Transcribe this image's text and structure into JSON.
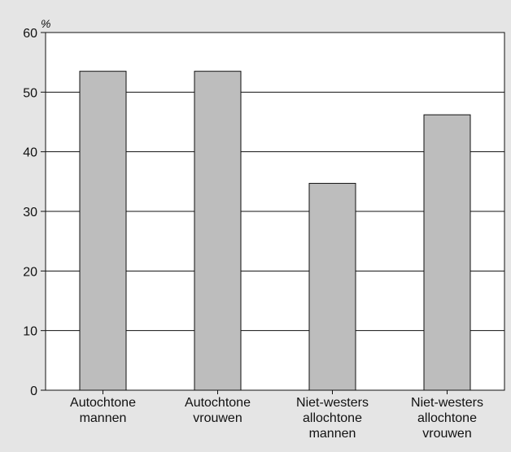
{
  "chart_data": {
    "type": "bar",
    "unit_label": "%",
    "categories": [
      [
        "Autochtone",
        "mannen"
      ],
      [
        "Autochtone",
        "vrouwen"
      ],
      [
        "Niet-westers",
        "allochtone",
        "mannen"
      ],
      [
        "Niet-westers",
        "allochtone",
        "vrouwen"
      ]
    ],
    "values": [
      53.5,
      53.5,
      34.7,
      46.2
    ],
    "ylim": [
      0,
      60
    ],
    "yticks": [
      "0",
      "10",
      "20",
      "30",
      "40",
      "50",
      "60"
    ],
    "grid": true,
    "colors": {
      "background": "#e5e5e5",
      "plot": "#ffffff",
      "bar": "#bdbdbd",
      "line": "#111111"
    }
  }
}
